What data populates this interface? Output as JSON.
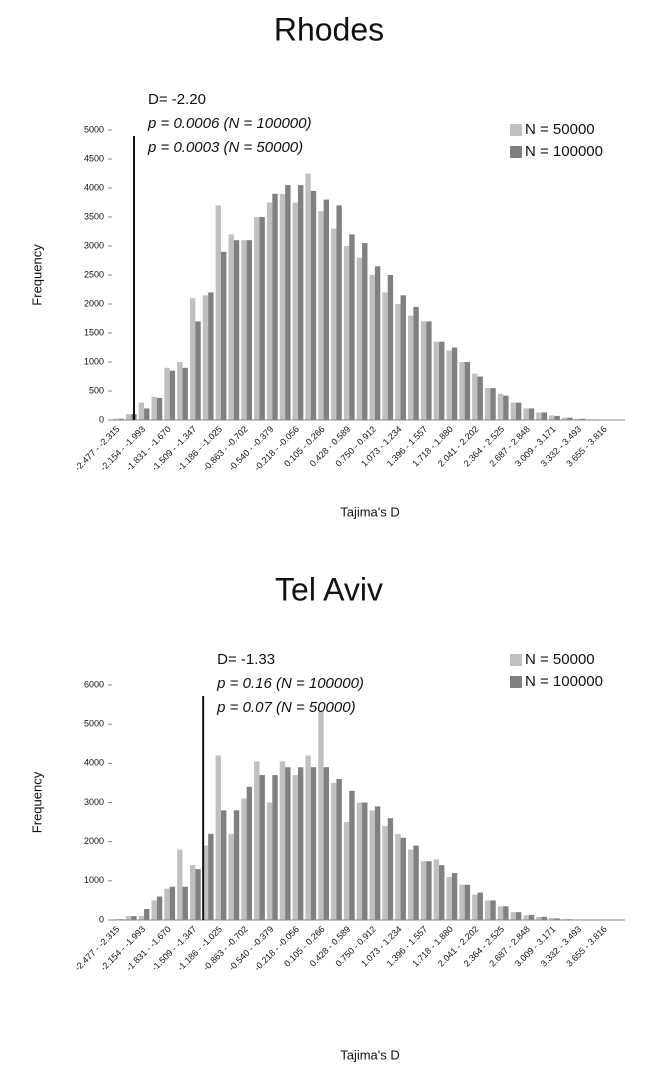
{
  "chart_data": [
    {
      "type": "bar",
      "title": "Rhodes",
      "x_label": "Tajima's D",
      "y_label": "Frequency",
      "categories": [
        "-2.477 - -2.315",
        null,
        "-2.154 - -1.993",
        null,
        "-1.831 - -1.670",
        null,
        "-1.509 - -1.347",
        null,
        "-1.186 - -1.025",
        null,
        "-0.863 - -0.702",
        null,
        "-0.540 - -0.379",
        null,
        "-0.218 - -0.056",
        null,
        "0.105 - 0.266",
        null,
        "0.428 - 0.589",
        null,
        "0.750 - 0.912",
        null,
        "1.073 - 1.234",
        null,
        "1.396 - 1.557",
        null,
        "1.718 - 1.880",
        null,
        "2.041 - 2.202",
        null,
        "2.364 - 2.525",
        null,
        "2.687 - 2.848",
        null,
        "3.009 - 3.171",
        null,
        "3.332 - 3.493",
        null,
        "3.655 - 3.816",
        null
      ],
      "series": [
        {
          "name": "N = 50000",
          "color": "#c0c0c0",
          "values": [
            20,
            100,
            300,
            400,
            900,
            1000,
            2100,
            2150,
            3700,
            3200,
            3100,
            3500,
            3750,
            3900,
            3750,
            4250,
            3600,
            3300,
            3000,
            2800,
            2500,
            2200,
            2000,
            1800,
            1700,
            1350,
            1200,
            1000,
            800,
            550,
            450,
            300,
            200,
            130,
            80,
            40,
            20,
            10,
            5,
            0
          ]
        },
        {
          "name": "N = 100000",
          "color": "#808080",
          "values": [
            20,
            100,
            200,
            380,
            850,
            900,
            1700,
            2200,
            2900,
            3100,
            3100,
            3500,
            3900,
            4050,
            4050,
            3950,
            3800,
            3700,
            3200,
            3050,
            2650,
            2500,
            2150,
            1950,
            1700,
            1350,
            1250,
            1000,
            750,
            550,
            420,
            300,
            200,
            130,
            70,
            40,
            20,
            10,
            5,
            0
          ]
        }
      ],
      "ylim": [
        0,
        5000
      ],
      "yticks": [
        0,
        500,
        1000,
        1500,
        2000,
        2500,
        3000,
        3500,
        4000,
        4500,
        5000
      ],
      "legend": "upper right",
      "annotation": {
        "d": {
          "value": -2.2,
          "label": "D= -2.20"
        },
        "notes": [
          "p = 0.0006 (N = 100000)",
          "p = 0.0003 (N = 50000)"
        ]
      }
    },
    {
      "type": "bar",
      "title": "Tel Aviv",
      "x_label": "Tajima's D",
      "y_label": "Frequency",
      "categories": [
        "-2.477 - -2.315",
        null,
        "-2.154 - -1.993",
        null,
        "-1.831 - -1.670",
        null,
        "-1.509 - -1.347",
        null,
        "-1.186 - -1.025",
        null,
        "-0.863 - -0.702",
        null,
        "-0.540 - -0.379",
        null,
        "-0.218 - -0.056",
        null,
        "0.105 - 0.266",
        null,
        "0.428 - 0.589",
        null,
        "0.750 - 0.912",
        null,
        "1.073 - 1.234",
        null,
        "1.396 - 1.557",
        null,
        "1.718 - 1.880",
        null,
        "2.041 - 2.202",
        null,
        "2.364 - 2.525",
        null,
        "2.687 - 2.848",
        null,
        "3.009 - 3.171",
        null,
        "3.332 - 3.493",
        null,
        "3.655 - 3.816",
        null
      ],
      "series": [
        {
          "name": "N = 50000",
          "color": "#c0c0c0",
          "values": [
            20,
            100,
            100,
            500,
            800,
            1800,
            1400,
            1900,
            4200,
            2200,
            3100,
            4050,
            3000,
            4050,
            3700,
            4200,
            5350,
            3500,
            2500,
            3000,
            2800,
            2400,
            2200,
            1800,
            1500,
            1550,
            1100,
            900,
            650,
            500,
            350,
            200,
            120,
            80,
            50,
            20,
            10,
            5,
            0,
            0
          ]
        },
        {
          "name": "N = 100000",
          "color": "#808080",
          "values": [
            20,
            100,
            280,
            600,
            850,
            850,
            1300,
            2200,
            2800,
            2800,
            3400,
            3700,
            3700,
            3900,
            3900,
            3900,
            3900,
            3600,
            3300,
            3000,
            2900,
            2600,
            2100,
            1900,
            1500,
            1400,
            1200,
            900,
            700,
            500,
            350,
            200,
            130,
            80,
            40,
            20,
            10,
            5,
            0,
            0
          ]
        }
      ],
      "ylim": [
        0,
        6000
      ],
      "yticks": [
        0,
        1000,
        2000,
        3000,
        4000,
        5000,
        6000
      ],
      "legend": "upper right",
      "annotation": {
        "d": {
          "value": -1.33,
          "label": "D= -1.33"
        },
        "notes": [
          "p = 0.16 (N = 100000)",
          "p = 0.07 (N = 50000)"
        ]
      }
    }
  ]
}
